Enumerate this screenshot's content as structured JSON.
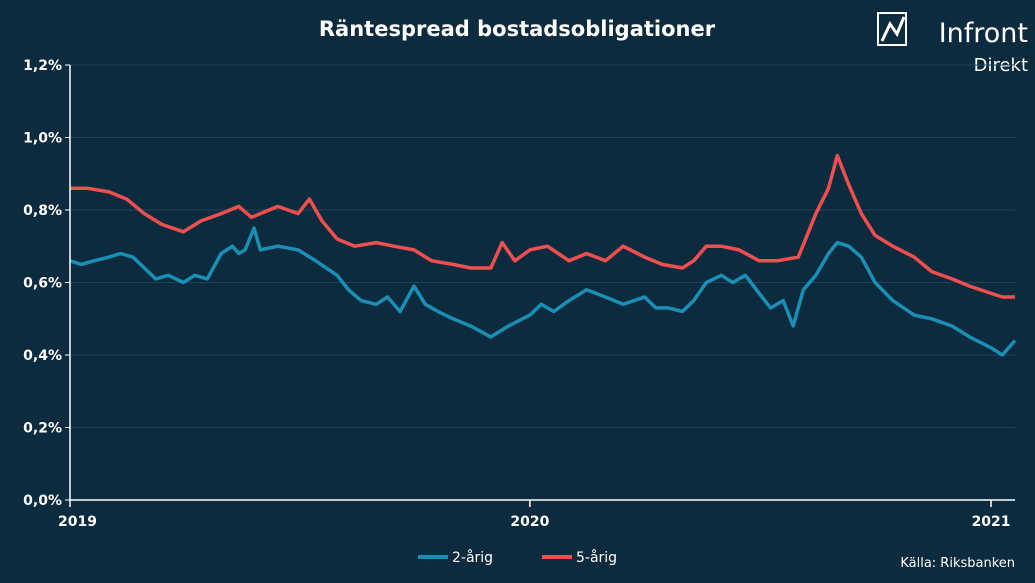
{
  "chart_data": {
    "type": "line",
    "title": "Räntespread bostadsobligationer",
    "xlabel": "",
    "ylabel": "",
    "x_start": "2019-01-01",
    "x_end": "2021-01-20",
    "xticks": [
      {
        "date": "2019-01-01",
        "label": "2019"
      },
      {
        "date": "2020-01-01",
        "label": "2020"
      },
      {
        "date": "2021-01-01",
        "label": "2021"
      }
    ],
    "ylim": [
      0,
      1.2
    ],
    "yticks": [
      {
        "value": 0.0,
        "label": "0,0%"
      },
      {
        "value": 0.2,
        "label": "0,2%"
      },
      {
        "value": 0.4,
        "label": "0,4%"
      },
      {
        "value": 0.6,
        "label": "0,6%"
      },
      {
        "value": 0.8,
        "label": "0,8%"
      },
      {
        "value": 1.0,
        "label": "1,0%"
      },
      {
        "value": 1.2,
        "label": "1,2%"
      }
    ],
    "grid": true,
    "legend_position": "bottom-center",
    "series": [
      {
        "name": "2-årig",
        "color": "#1a8fb5",
        "points": [
          [
            "2019-01-01",
            0.66
          ],
          [
            "2019-01-10",
            0.65
          ],
          [
            "2019-01-20",
            0.66
          ],
          [
            "2019-02-01",
            0.67
          ],
          [
            "2019-02-10",
            0.68
          ],
          [
            "2019-02-20",
            0.67
          ],
          [
            "2019-03-01",
            0.64
          ],
          [
            "2019-03-10",
            0.61
          ],
          [
            "2019-03-20",
            0.62
          ],
          [
            "2019-04-01",
            0.6
          ],
          [
            "2019-04-10",
            0.62
          ],
          [
            "2019-04-20",
            0.61
          ],
          [
            "2019-05-01",
            0.68
          ],
          [
            "2019-05-10",
            0.7
          ],
          [
            "2019-05-15",
            0.68
          ],
          [
            "2019-05-20",
            0.69
          ],
          [
            "2019-05-27",
            0.75
          ],
          [
            "2019-06-01",
            0.69
          ],
          [
            "2019-06-15",
            0.7
          ],
          [
            "2019-07-01",
            0.69
          ],
          [
            "2019-07-15",
            0.66
          ],
          [
            "2019-08-01",
            0.62
          ],
          [
            "2019-08-10",
            0.58
          ],
          [
            "2019-08-20",
            0.55
          ],
          [
            "2019-09-01",
            0.54
          ],
          [
            "2019-09-10",
            0.56
          ],
          [
            "2019-09-20",
            0.52
          ],
          [
            "2019-10-01",
            0.59
          ],
          [
            "2019-10-10",
            0.54
          ],
          [
            "2019-10-20",
            0.52
          ],
          [
            "2019-11-01",
            0.5
          ],
          [
            "2019-11-15",
            0.48
          ],
          [
            "2019-12-01",
            0.45
          ],
          [
            "2019-12-15",
            0.48
          ],
          [
            "2020-01-01",
            0.51
          ],
          [
            "2020-01-10",
            0.54
          ],
          [
            "2020-01-20",
            0.52
          ],
          [
            "2020-02-01",
            0.55
          ],
          [
            "2020-02-15",
            0.58
          ],
          [
            "2020-03-01",
            0.56
          ],
          [
            "2020-03-15",
            0.54
          ],
          [
            "2020-04-01",
            0.56
          ],
          [
            "2020-04-10",
            0.53
          ],
          [
            "2020-04-20",
            0.53
          ],
          [
            "2020-05-01",
            0.52
          ],
          [
            "2020-05-10",
            0.55
          ],
          [
            "2020-05-20",
            0.6
          ],
          [
            "2020-06-01",
            0.62
          ],
          [
            "2020-06-10",
            0.6
          ],
          [
            "2020-06-20",
            0.62
          ],
          [
            "2020-07-01",
            0.57
          ],
          [
            "2020-07-10",
            0.53
          ],
          [
            "2020-07-20",
            0.55
          ],
          [
            "2020-07-28",
            0.48
          ],
          [
            "2020-08-05",
            0.58
          ],
          [
            "2020-08-15",
            0.62
          ],
          [
            "2020-08-25",
            0.68
          ],
          [
            "2020-09-01",
            0.71
          ],
          [
            "2020-09-10",
            0.7
          ],
          [
            "2020-09-20",
            0.67
          ],
          [
            "2020-10-01",
            0.6
          ],
          [
            "2020-10-15",
            0.55
          ],
          [
            "2020-11-01",
            0.51
          ],
          [
            "2020-11-15",
            0.5
          ],
          [
            "2020-12-01",
            0.48
          ],
          [
            "2020-12-15",
            0.45
          ],
          [
            "2021-01-01",
            0.42
          ],
          [
            "2021-01-10",
            0.4
          ],
          [
            "2021-01-20",
            0.44
          ]
        ]
      },
      {
        "name": "5-årig",
        "color": "#f04f4f",
        "points": [
          [
            "2019-01-01",
            0.86
          ],
          [
            "2019-01-15",
            0.86
          ],
          [
            "2019-02-01",
            0.85
          ],
          [
            "2019-02-15",
            0.83
          ],
          [
            "2019-03-01",
            0.79
          ],
          [
            "2019-03-15",
            0.76
          ],
          [
            "2019-04-01",
            0.74
          ],
          [
            "2019-04-15",
            0.77
          ],
          [
            "2019-05-01",
            0.79
          ],
          [
            "2019-05-15",
            0.81
          ],
          [
            "2019-05-25",
            0.78
          ],
          [
            "2019-06-01",
            0.79
          ],
          [
            "2019-06-15",
            0.81
          ],
          [
            "2019-07-01",
            0.79
          ],
          [
            "2019-07-10",
            0.83
          ],
          [
            "2019-07-20",
            0.77
          ],
          [
            "2019-08-01",
            0.72
          ],
          [
            "2019-08-15",
            0.7
          ],
          [
            "2019-09-01",
            0.71
          ],
          [
            "2019-09-15",
            0.7
          ],
          [
            "2019-10-01",
            0.69
          ],
          [
            "2019-10-15",
            0.66
          ],
          [
            "2019-11-01",
            0.65
          ],
          [
            "2019-11-15",
            0.64
          ],
          [
            "2019-12-01",
            0.64
          ],
          [
            "2019-12-10",
            0.71
          ],
          [
            "2019-12-20",
            0.66
          ],
          [
            "2020-01-01",
            0.69
          ],
          [
            "2020-01-15",
            0.7
          ],
          [
            "2020-02-01",
            0.66
          ],
          [
            "2020-02-15",
            0.68
          ],
          [
            "2020-03-01",
            0.66
          ],
          [
            "2020-03-15",
            0.7
          ],
          [
            "2020-04-01",
            0.67
          ],
          [
            "2020-04-15",
            0.65
          ],
          [
            "2020-05-01",
            0.64
          ],
          [
            "2020-05-10",
            0.66
          ],
          [
            "2020-05-20",
            0.7
          ],
          [
            "2020-06-01",
            0.7
          ],
          [
            "2020-06-15",
            0.69
          ],
          [
            "2020-07-01",
            0.66
          ],
          [
            "2020-07-15",
            0.66
          ],
          [
            "2020-08-01",
            0.67
          ],
          [
            "2020-08-15",
            0.79
          ],
          [
            "2020-08-25",
            0.86
          ],
          [
            "2020-09-01",
            0.95
          ],
          [
            "2020-09-10",
            0.87
          ],
          [
            "2020-09-20",
            0.79
          ],
          [
            "2020-10-01",
            0.73
          ],
          [
            "2020-10-15",
            0.7
          ],
          [
            "2020-11-01",
            0.67
          ],
          [
            "2020-11-15",
            0.63
          ],
          [
            "2020-12-01",
            0.61
          ],
          [
            "2020-12-15",
            0.59
          ],
          [
            "2021-01-01",
            0.57
          ],
          [
            "2021-01-10",
            0.56
          ],
          [
            "2021-01-20",
            0.56
          ]
        ]
      }
    ]
  },
  "source": "Källa:  Riksbanken",
  "logo": {
    "name": "Infront",
    "sub": "Direkt"
  },
  "colors": {
    "background": "#0d2b3e",
    "grid": "#1e4257",
    "axis": "#ffffff"
  }
}
